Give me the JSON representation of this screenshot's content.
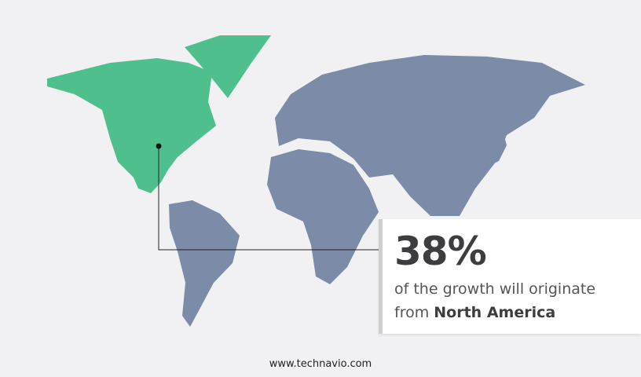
{
  "map": {
    "highlight_region": "North America",
    "colors": {
      "highlight": "#4fc08d",
      "other": "#7b8ba8",
      "background": "#f1f1f4"
    }
  },
  "callout": {
    "percentage": "38%",
    "line1": "of the growth will originate",
    "line2_prefix": "from",
    "region": "North America"
  },
  "footer": {
    "website": "www.technavio.com"
  }
}
